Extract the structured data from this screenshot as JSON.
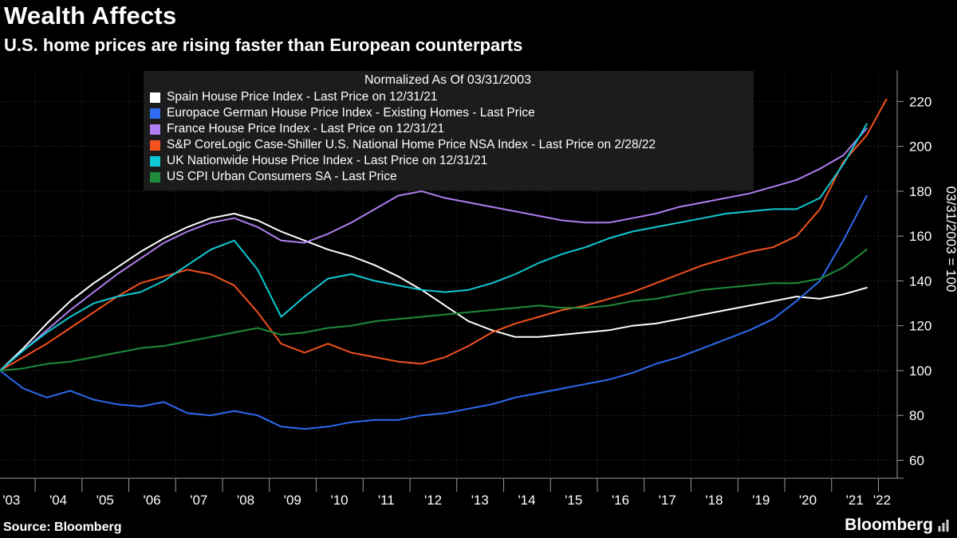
{
  "header": {
    "title": "Wealth Affects",
    "subtitle": "U.S. home prices are rising faster than European counterparts"
  },
  "footer": {
    "source": "Source: Bloomberg",
    "brand": "Bloomberg"
  },
  "colors": {
    "background": "#000000",
    "grid": "#3e3e3e",
    "legend_background": "#1c1c1c",
    "axis_text": "#ffffff"
  },
  "chart_data": {
    "type": "line",
    "legend_title": "Normalized As Of 03/31/2003",
    "right_axis_label": "03/31/2003 = 100",
    "legend_position": "top-center",
    "grid": "dotted",
    "xlim": [
      2003.25,
      2022.4
    ],
    "ylim": [
      52,
      234
    ],
    "yticks": [
      60,
      80,
      100,
      120,
      140,
      160,
      180,
      200,
      220
    ],
    "xtick_labels": [
      "'03",
      "'04",
      "'05",
      "'06",
      "'07",
      "'08",
      "'09",
      "'10",
      "'11",
      "'12",
      "'13",
      "'14",
      "'15",
      "'16",
      "'17",
      "'18",
      "'19",
      "'20",
      "'21",
      "'22"
    ],
    "xtick_years": [
      2003,
      2004,
      2005,
      2006,
      2007,
      2008,
      2009,
      2010,
      2011,
      2012,
      2013,
      2014,
      2015,
      2016,
      2017,
      2018,
      2019,
      2020,
      2021,
      2022
    ],
    "x": [
      2003.25,
      2003.75,
      2004.25,
      2004.75,
      2005.25,
      2005.75,
      2006.25,
      2006.75,
      2007.25,
      2007.75,
      2008.25,
      2008.75,
      2009.25,
      2009.75,
      2010.25,
      2010.75,
      2011.25,
      2011.75,
      2012.25,
      2012.75,
      2013.25,
      2013.75,
      2014.25,
      2014.75,
      2015.25,
      2015.75,
      2016.25,
      2016.75,
      2017.25,
      2017.75,
      2018.25,
      2018.75,
      2019.25,
      2019.75,
      2020.25,
      2020.75,
      2021.25,
      2021.75,
      2022.17
    ],
    "series": [
      {
        "id": "spain-house-price",
        "name": "Spain House Price Index - Last Price on 12/31/21",
        "color": "#ffffff",
        "values": [
          100,
          110,
          121,
          131,
          139,
          146,
          153,
          159,
          164,
          168,
          170,
          167,
          162,
          158,
          154,
          151,
          147,
          142,
          136,
          129,
          122,
          118,
          115,
          115,
          116,
          117,
          118,
          120,
          121,
          123,
          125,
          127,
          129,
          131,
          133,
          132,
          134,
          137
        ]
      },
      {
        "id": "germany-europace",
        "name": "Europace German House Price Index - Existing Homes - Last Price",
        "color": "#2d6bf0",
        "values": [
          100,
          92,
          88,
          91,
          87,
          85,
          84,
          86,
          81,
          80,
          82,
          80,
          75,
          74,
          75,
          77,
          78,
          78,
          80,
          81,
          83,
          85,
          88,
          90,
          92,
          94,
          96,
          99,
          103,
          106,
          110,
          114,
          118,
          123,
          131,
          140,
          158,
          178
        ]
      },
      {
        "id": "france-house-price",
        "name": "France House Price Index - Last Price on 12/31/21",
        "color": "#b07ef0",
        "values": [
          100,
          109,
          118,
          127,
          135,
          143,
          150,
          157,
          162,
          166,
          168,
          164,
          158,
          157,
          161,
          166,
          172,
          178,
          180,
          177,
          175,
          173,
          171,
          169,
          167,
          166,
          166,
          168,
          170,
          173,
          175,
          177,
          179,
          182,
          185,
          190,
          196,
          208
        ]
      },
      {
        "id": "us-case-shiller",
        "name": "S&P CoreLogic Case-Shiller U.S. National Home Price NSA Index - Last Price on 2/28/22",
        "color": "#f4511e",
        "values": [
          100,
          106,
          112,
          119,
          126,
          133,
          139,
          142,
          145,
          143,
          138,
          126,
          112,
          108,
          112,
          108,
          106,
          104,
          103,
          106,
          111,
          117,
          121,
          124,
          127,
          129,
          132,
          135,
          139,
          143,
          147,
          150,
          153,
          155,
          160,
          172,
          193,
          205,
          221
        ]
      },
      {
        "id": "uk-nationwide",
        "name": "UK Nationwide House Price Index - Last Price on 12/31/21",
        "color": "#0fc9d4",
        "values": [
          100,
          109,
          117,
          124,
          130,
          133,
          135,
          140,
          147,
          154,
          158,
          145,
          124,
          133,
          141,
          143,
          140,
          138,
          136,
          135,
          136,
          139,
          143,
          148,
          152,
          155,
          159,
          162,
          164,
          166,
          168,
          170,
          171,
          172,
          172,
          177,
          192,
          210
        ]
      },
      {
        "id": "us-cpi",
        "name": "US CPI Urban Consumers SA - Last Price",
        "color": "#1e8c3c",
        "values": [
          100,
          101,
          103,
          104,
          106,
          108,
          110,
          111,
          113,
          115,
          117,
          119,
          116,
          117,
          119,
          120,
          122,
          123,
          124,
          125,
          126,
          127,
          128,
          129,
          128,
          128,
          129,
          131,
          132,
          134,
          136,
          137,
          138,
          139,
          139,
          141,
          146,
          154
        ]
      }
    ]
  }
}
